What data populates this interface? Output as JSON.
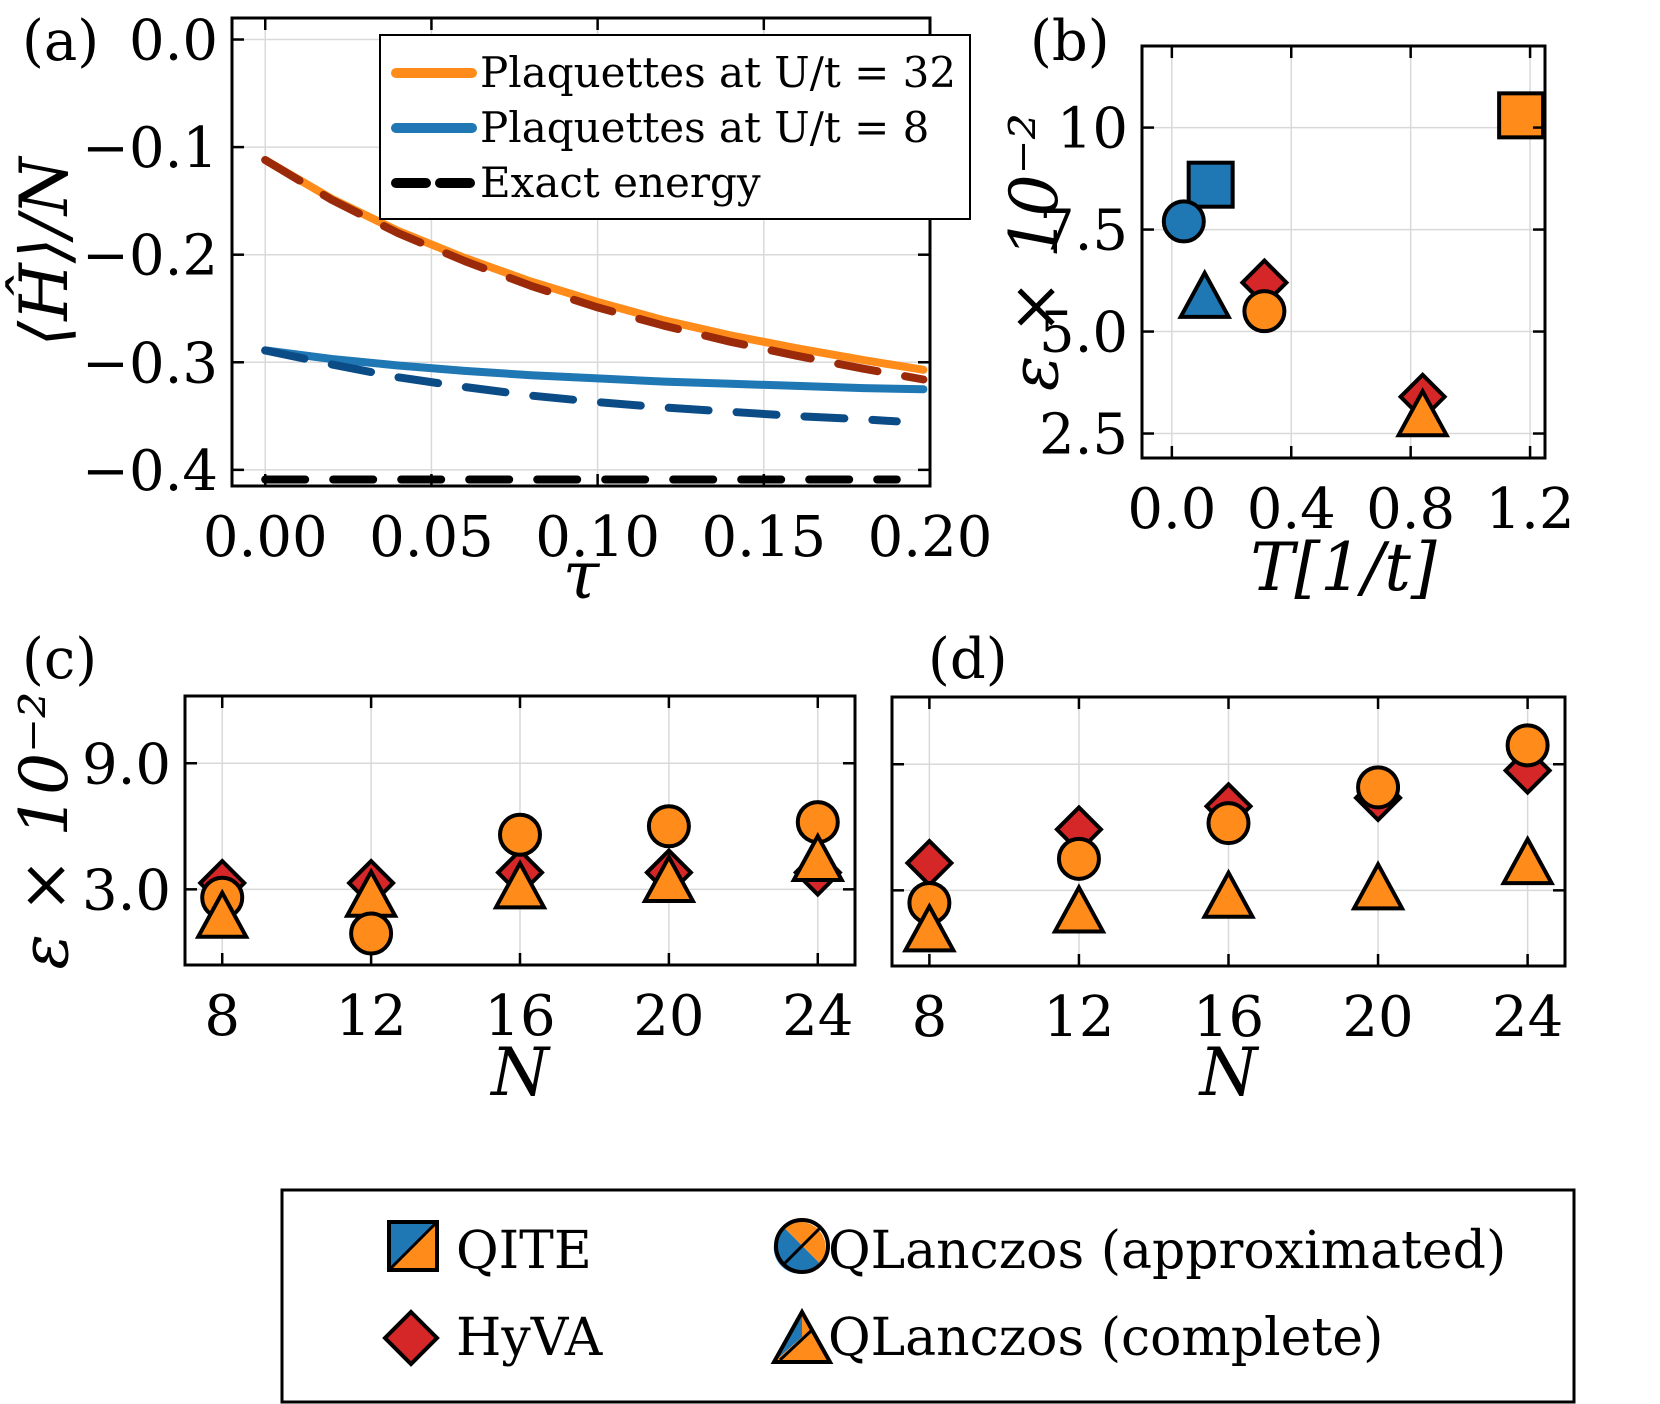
{
  "colors": {
    "orange": "#ff8c1a",
    "blue": "#1f77b4",
    "red": "#d62728",
    "darkred": "#9a2a0a",
    "navy": "#0b4c86",
    "black": "#000000"
  },
  "legend": {
    "qite": "QITE",
    "hyva": "HyVA",
    "qlanczos_approx": "QLanczos (approximated)",
    "qlanczos_complete": "QLanczos (complete)"
  },
  "chart_data": [
    {
      "panel": "(a)",
      "type": "line",
      "xlabel": "τ",
      "ylabel": "⟨Ĥ⟩/N",
      "xlim": [
        -0.01,
        0.2
      ],
      "ylim": [
        -0.415,
        0.02
      ],
      "xticks": [
        0.0,
        0.05,
        0.1,
        0.15,
        0.2
      ],
      "xtick_labels": [
        "0.00",
        "0.05",
        "0.10",
        "0.15",
        "0.20"
      ],
      "yticks": [
        0.0,
        -0.1,
        -0.2,
        -0.3,
        -0.4
      ],
      "ytick_labels": [
        "0.0",
        "−0.1",
        "−0.2",
        "−0.3",
        "−0.4"
      ],
      "grid": true,
      "legend_position": "top-right",
      "legend": [
        {
          "label": "Plaquettes at U/t = 32",
          "color": "#ff8c1a",
          "style": "solid"
        },
        {
          "label": "Plaquettes at U/t = 8",
          "color": "#1f77b4",
          "style": "solid"
        },
        {
          "label": "Exact energy",
          "color": "#000000",
          "style": "dashed"
        }
      ],
      "series": [
        {
          "color": "#ff8c1a",
          "style": "solid",
          "x": [
            0.0,
            0.02,
            0.04,
            0.06,
            0.08,
            0.1,
            0.12,
            0.14,
            0.16,
            0.18,
            0.198
          ],
          "y": [
            -0.112,
            -0.148,
            -0.178,
            -0.203,
            -0.225,
            -0.244,
            -0.261,
            -0.275,
            -0.287,
            -0.298,
            -0.307
          ]
        },
        {
          "color": "#9a2a0a",
          "style": "dashed",
          "x": [
            0.0,
            0.02,
            0.04,
            0.06,
            0.08,
            0.1,
            0.12,
            0.14,
            0.16,
            0.18,
            0.198
          ],
          "y": [
            -0.112,
            -0.149,
            -0.18,
            -0.206,
            -0.229,
            -0.249,
            -0.266,
            -0.281,
            -0.294,
            -0.306,
            -0.316
          ]
        },
        {
          "color": "#1f77b4",
          "style": "solid",
          "x": [
            0.0,
            0.02,
            0.04,
            0.06,
            0.08,
            0.1,
            0.12,
            0.14,
            0.16,
            0.18,
            0.198
          ],
          "y": [
            -0.289,
            -0.297,
            -0.303,
            -0.308,
            -0.312,
            -0.315,
            -0.318,
            -0.32,
            -0.322,
            -0.324,
            -0.325
          ]
        },
        {
          "color": "#0b4c86",
          "style": "dashed",
          "x": [
            0.0,
            0.02,
            0.04,
            0.06,
            0.08,
            0.1,
            0.12,
            0.14,
            0.16,
            0.18,
            0.19
          ],
          "y": [
            -0.289,
            -0.302,
            -0.314,
            -0.323,
            -0.331,
            -0.337,
            -0.342,
            -0.346,
            -0.35,
            -0.353,
            -0.355
          ]
        },
        {
          "color": "#000000",
          "style": "dashed",
          "x": [
            0.0,
            0.19
          ],
          "y": [
            -0.409,
            -0.409
          ]
        }
      ]
    },
    {
      "panel": "(b)",
      "type": "scatter",
      "xlabel": "T[1/t]",
      "ylabel": "ε × 10⁻²",
      "xlim": [
        -0.1,
        1.25
      ],
      "ylim": [
        1.9,
        12.0
      ],
      "xticks": [
        0.0,
        0.4,
        0.8,
        1.2
      ],
      "xtick_labels": [
        "0.0",
        "0.4",
        "0.8",
        "1.2"
      ],
      "yticks": [
        2.5,
        5.0,
        7.5,
        10.0
      ],
      "ytick_labels": [
        "2.5",
        "5.0",
        "7.5",
        "10"
      ],
      "grid": true,
      "points": [
        {
          "method": "QITE",
          "marker": "square",
          "fill": "#1f77b4",
          "x": 0.13,
          "y": 8.6
        },
        {
          "method": "QLanczos (approximated)",
          "marker": "circle",
          "fill": "#1f77b4",
          "x": 0.04,
          "y": 7.7
        },
        {
          "method": "QLanczos (complete)",
          "marker": "triangle",
          "fill": "#1f77b4",
          "x": 0.11,
          "y": 5.8
        },
        {
          "method": "HyVA",
          "marker": "diamond",
          "fill": "#d62728",
          "x": 0.31,
          "y": 6.2
        },
        {
          "method": "QLanczos (approximated)",
          "marker": "circle",
          "fill": "#ff8c1a",
          "x": 0.31,
          "y": 5.5
        },
        {
          "method": "HyVA",
          "marker": "diamond",
          "fill": "#d62728",
          "x": 0.84,
          "y": 3.4
        },
        {
          "method": "QLanczos (complete)",
          "marker": "triangle",
          "fill": "#ff8c1a",
          "x": 0.84,
          "y": 2.9
        },
        {
          "method": "QITE",
          "marker": "square",
          "fill": "#ff8c1a",
          "x": 1.17,
          "y": 10.3
        }
      ]
    },
    {
      "panel": "(c)",
      "type": "scatter",
      "xlabel": "N",
      "ylabel": "ε × 10⁻²",
      "xlim": [
        7.0,
        25.0
      ],
      "ylim": [
        -0.6,
        12.2
      ],
      "xticks": [
        8,
        12,
        16,
        20,
        24
      ],
      "xtick_labels": [
        "8",
        "12",
        "16",
        "20",
        "24"
      ],
      "yticks": [
        3.0,
        9.0
      ],
      "ytick_labels": [
        "3.0",
        "9.0"
      ],
      "grid": true,
      "points": [
        {
          "method": "HyVA",
          "marker": "diamond",
          "fill": "#d62728",
          "x": 8,
          "y": 3.3
        },
        {
          "method": "QLanczos (approximated)",
          "marker": "circle",
          "fill": "#ff8c1a",
          "x": 8,
          "y": 2.6
        },
        {
          "method": "QLanczos (complete)",
          "marker": "triangle",
          "fill": "#ff8c1a",
          "x": 8,
          "y": 1.6
        },
        {
          "method": "HyVA",
          "marker": "diamond",
          "fill": "#d62728",
          "x": 12,
          "y": 3.3
        },
        {
          "method": "QLanczos (complete)",
          "marker": "triangle",
          "fill": "#ff8c1a",
          "x": 12,
          "y": 2.6
        },
        {
          "method": "QLanczos (approximated)",
          "marker": "circle",
          "fill": "#ff8c1a",
          "x": 12,
          "y": 0.9
        },
        {
          "method": "HyVA",
          "marker": "diamond",
          "fill": "#d62728",
          "x": 16,
          "y": 3.8
        },
        {
          "method": "QLanczos (approximated)",
          "marker": "circle",
          "fill": "#ff8c1a",
          "x": 16,
          "y": 5.6
        },
        {
          "method": "QLanczos (complete)",
          "marker": "triangle",
          "fill": "#ff8c1a",
          "x": 16,
          "y": 3.0
        },
        {
          "method": "HyVA",
          "marker": "diamond",
          "fill": "#d62728",
          "x": 20,
          "y": 3.8
        },
        {
          "method": "QLanczos (approximated)",
          "marker": "circle",
          "fill": "#ff8c1a",
          "x": 20,
          "y": 6.0
        },
        {
          "method": "QLanczos (complete)",
          "marker": "triangle",
          "fill": "#ff8c1a",
          "x": 20,
          "y": 3.3
        },
        {
          "method": "HyVA",
          "marker": "diamond",
          "fill": "#d62728",
          "x": 24,
          "y": 3.8
        },
        {
          "method": "QLanczos (approximated)",
          "marker": "circle",
          "fill": "#ff8c1a",
          "x": 24,
          "y": 6.2
        },
        {
          "method": "QLanczos (complete)",
          "marker": "triangle",
          "fill": "#ff8c1a",
          "x": 24,
          "y": 4.3
        }
      ]
    },
    {
      "panel": "(d)",
      "type": "scatter",
      "xlabel": "N",
      "ylabel": "",
      "xlim": [
        7.0,
        25.0
      ],
      "ylim": [
        -0.6,
        12.2
      ],
      "xticks": [
        8,
        12,
        16,
        20,
        24
      ],
      "xtick_labels": [
        "8",
        "12",
        "16",
        "20",
        "24"
      ],
      "yticks": [
        3.0,
        9.0
      ],
      "ytick_labels": [],
      "grid": true,
      "points": [
        {
          "method": "HyVA",
          "marker": "diamond",
          "fill": "#d62728",
          "x": 8,
          "y": 4.3
        },
        {
          "method": "QLanczos (approximated)",
          "marker": "circle",
          "fill": "#ff8c1a",
          "x": 8,
          "y": 2.4
        },
        {
          "method": "QLanczos (complete)",
          "marker": "triangle",
          "fill": "#ff8c1a",
          "x": 8,
          "y": 1.0
        },
        {
          "method": "HyVA",
          "marker": "diamond",
          "fill": "#d62728",
          "x": 12,
          "y": 5.9
        },
        {
          "method": "QLanczos (approximated)",
          "marker": "circle",
          "fill": "#ff8c1a",
          "x": 12,
          "y": 4.5
        },
        {
          "method": "QLanczos (complete)",
          "marker": "triangle",
          "fill": "#ff8c1a",
          "x": 12,
          "y": 1.9
        },
        {
          "method": "HyVA",
          "marker": "diamond",
          "fill": "#d62728",
          "x": 16,
          "y": 7.0
        },
        {
          "method": "QLanczos (approximated)",
          "marker": "circle",
          "fill": "#ff8c1a",
          "x": 16,
          "y": 6.2
        },
        {
          "method": "QLanczos (complete)",
          "marker": "triangle",
          "fill": "#ff8c1a",
          "x": 16,
          "y": 2.6
        },
        {
          "method": "HyVA",
          "marker": "diamond",
          "fill": "#d62728",
          "x": 20,
          "y": 7.4
        },
        {
          "method": "QLanczos (approximated)",
          "marker": "circle",
          "fill": "#ff8c1a",
          "x": 20,
          "y": 7.9
        },
        {
          "method": "QLanczos (complete)",
          "marker": "triangle",
          "fill": "#ff8c1a",
          "x": 20,
          "y": 3.0
        },
        {
          "method": "HyVA",
          "marker": "diamond",
          "fill": "#d62728",
          "x": 24,
          "y": 8.7
        },
        {
          "method": "QLanczos (approximated)",
          "marker": "circle",
          "fill": "#ff8c1a",
          "x": 24,
          "y": 9.9
        },
        {
          "method": "QLanczos (complete)",
          "marker": "triangle",
          "fill": "#ff8c1a",
          "x": 24,
          "y": 4.2
        }
      ]
    }
  ]
}
